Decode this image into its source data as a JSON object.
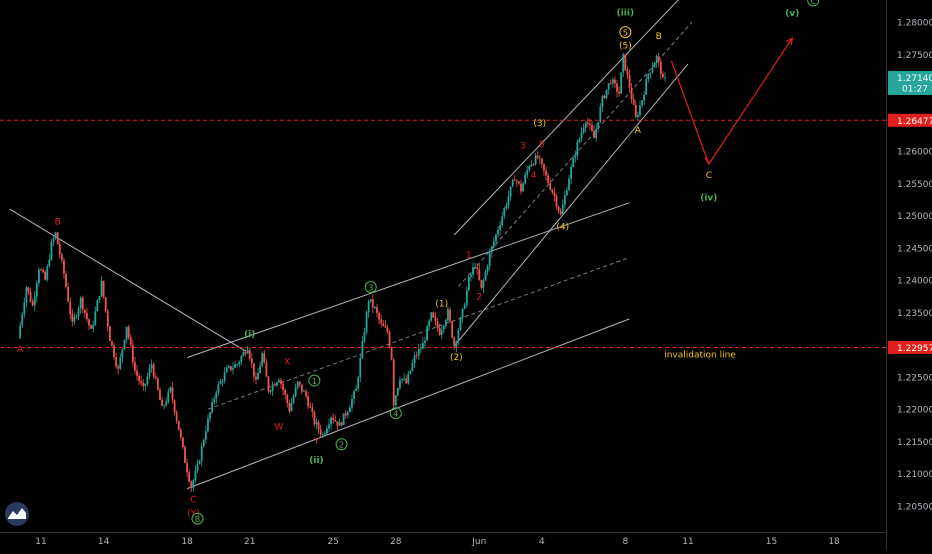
{
  "chart_data": {
    "type": "candlestick",
    "title": "",
    "xlabel": "",
    "ylabel": "",
    "ylim": [
      1.202,
      1.2845
    ],
    "grid": false,
    "x_ticks": [
      {
        "day": 0,
        "label": "11"
      },
      {
        "day": 3,
        "label": "14"
      },
      {
        "day": 7,
        "label": "18"
      },
      {
        "day": 10,
        "label": "21"
      },
      {
        "day": 14,
        "label": "25"
      },
      {
        "day": 17,
        "label": "28"
      },
      {
        "day": 21,
        "label": "Jun"
      },
      {
        "day": 24,
        "label": "4"
      },
      {
        "day": 28,
        "label": "8"
      },
      {
        "day": 31,
        "label": "11"
      },
      {
        "day": 35,
        "label": "15"
      },
      {
        "day": 38,
        "label": "18"
      }
    ],
    "y_ticks": [
      {
        "value": 1.28,
        "label": "1.28000"
      },
      {
        "value": 1.275,
        "label": "1.27500"
      },
      {
        "value": 1.27,
        "label": "1.27000"
      },
      {
        "value": 1.26,
        "label": "1.26000"
      },
      {
        "value": 1.255,
        "label": "1.25500"
      },
      {
        "value": 1.25,
        "label": "1.25000"
      },
      {
        "value": 1.245,
        "label": "1.24500"
      },
      {
        "value": 1.24,
        "label": "1.24000"
      },
      {
        "value": 1.235,
        "label": "1.23500"
      },
      {
        "value": 1.225,
        "label": "1.22500"
      },
      {
        "value": 1.22,
        "label": "1.22000"
      },
      {
        "value": 1.215,
        "label": "1.21500"
      },
      {
        "value": 1.21,
        "label": "1.21000"
      },
      {
        "value": 1.205,
        "label": "1.20500"
      }
    ],
    "price_badges": [
      {
        "value": 1.2714,
        "label": "1.27140",
        "sub": "01:27",
        "color": "#26a69a"
      },
      {
        "value": 1.26477,
        "label": "1.26477",
        "sub": "",
        "color": "#e1201e"
      },
      {
        "value": 1.22957,
        "label": "1.22957",
        "sub": "",
        "color": "#e1201e"
      }
    ],
    "horizontal_lines": [
      {
        "value": 1.26477,
        "color": "#e1201e",
        "style": "dashed"
      },
      {
        "value": 1.22957,
        "color": "#e1201e",
        "style": "dashed",
        "annotation": "invalidation line"
      }
    ],
    "price_path": [
      {
        "day": -1.0,
        "price": 1.231
      },
      {
        "day": -0.6,
        "price": 1.239
      },
      {
        "day": -0.3,
        "price": 1.236
      },
      {
        "day": 0.0,
        "price": 1.242
      },
      {
        "day": 0.3,
        "price": 1.24
      },
      {
        "day": 0.6,
        "price": 1.2455
      },
      {
        "day": 0.8,
        "price": 1.2472
      },
      {
        "day": 1.2,
        "price": 1.241
      },
      {
        "day": 1.6,
        "price": 1.233
      },
      {
        "day": 2.0,
        "price": 1.237
      },
      {
        "day": 2.5,
        "price": 1.232
      },
      {
        "day": 3.0,
        "price": 1.2395
      },
      {
        "day": 3.4,
        "price": 1.231
      },
      {
        "day": 3.8,
        "price": 1.226
      },
      {
        "day": 4.2,
        "price": 1.233
      },
      {
        "day": 4.6,
        "price": 1.226
      },
      {
        "day": 5.0,
        "price": 1.223
      },
      {
        "day": 5.4,
        "price": 1.227
      },
      {
        "day": 5.9,
        "price": 1.22
      },
      {
        "day": 6.3,
        "price": 1.223
      },
      {
        "day": 6.7,
        "price": 1.217
      },
      {
        "day": 7.0,
        "price": 1.212
      },
      {
        "day": 7.3,
        "price": 1.208
      },
      {
        "day": 7.6,
        "price": 1.211
      },
      {
        "day": 8.0,
        "price": 1.217
      },
      {
        "day": 8.5,
        "price": 1.223
      },
      {
        "day": 9.0,
        "price": 1.226
      },
      {
        "day": 9.5,
        "price": 1.227
      },
      {
        "day": 10.0,
        "price": 1.2298
      },
      {
        "day": 10.4,
        "price": 1.224
      },
      {
        "day": 10.7,
        "price": 1.2285
      },
      {
        "day": 11.0,
        "price": 1.223
      },
      {
        "day": 11.5,
        "price": 1.225
      },
      {
        "day": 12.0,
        "price": 1.22
      },
      {
        "day": 12.4,
        "price": 1.224
      },
      {
        "day": 12.8,
        "price": 1.222
      },
      {
        "day": 13.2,
        "price": 1.218
      },
      {
        "day": 13.6,
        "price": 1.216
      },
      {
        "day": 14.0,
        "price": 1.219
      },
      {
        "day": 14.4,
        "price": 1.2175
      },
      {
        "day": 14.8,
        "price": 1.22
      },
      {
        "day": 15.2,
        "price": 1.223
      },
      {
        "day": 15.5,
        "price": 1.23
      },
      {
        "day": 15.8,
        "price": 1.237
      },
      {
        "day": 16.1,
        "price": 1.2355
      },
      {
        "day": 16.4,
        "price": 1.233
      },
      {
        "day": 16.7,
        "price": 1.232
      },
      {
        "day": 16.9,
        "price": 1.228
      },
      {
        "day": 17.0,
        "price": 1.221
      },
      {
        "day": 17.3,
        "price": 1.225
      },
      {
        "day": 17.6,
        "price": 1.224
      },
      {
        "day": 18.0,
        "price": 1.228
      },
      {
        "day": 18.4,
        "price": 1.23
      },
      {
        "day": 18.8,
        "price": 1.2345
      },
      {
        "day": 19.2,
        "price": 1.232
      },
      {
        "day": 19.6,
        "price": 1.235
      },
      {
        "day": 19.9,
        "price": 1.2298
      },
      {
        "day": 20.3,
        "price": 1.235
      },
      {
        "day": 20.6,
        "price": 1.24
      },
      {
        "day": 20.9,
        "price": 1.2425
      },
      {
        "day": 21.2,
        "price": 1.2385
      },
      {
        "day": 21.6,
        "price": 1.244
      },
      {
        "day": 22.0,
        "price": 1.248
      },
      {
        "day": 22.4,
        "price": 1.252
      },
      {
        "day": 22.8,
        "price": 1.256
      },
      {
        "day": 23.1,
        "price": 1.254
      },
      {
        "day": 23.5,
        "price": 1.258
      },
      {
        "day": 23.9,
        "price": 1.259
      },
      {
        "day": 24.3,
        "price": 1.256
      },
      {
        "day": 24.7,
        "price": 1.253
      },
      {
        "day": 25.0,
        "price": 1.25
      },
      {
        "day": 25.4,
        "price": 1.256
      },
      {
        "day": 25.8,
        "price": 1.261
      },
      {
        "day": 26.2,
        "price": 1.265
      },
      {
        "day": 26.6,
        "price": 1.262
      },
      {
        "day": 27.0,
        "price": 1.268
      },
      {
        "day": 27.4,
        "price": 1.271
      },
      {
        "day": 27.8,
        "price": 1.269
      },
      {
        "day": 28.0,
        "price": 1.2745
      },
      {
        "day": 28.3,
        "price": 1.27
      },
      {
        "day": 28.6,
        "price": 1.265
      },
      {
        "day": 28.9,
        "price": 1.268
      },
      {
        "day": 29.2,
        "price": 1.272
      },
      {
        "day": 29.6,
        "price": 1.2745
      },
      {
        "day": 29.9,
        "price": 1.2714
      }
    ],
    "trend_lines": [
      {
        "color": "#b2b5be",
        "dash": false,
        "points": [
          [
            -1.5,
            1.251
          ],
          [
            9.8,
            1.229
          ]
        ]
      },
      {
        "color": "#b2b5be",
        "dash": false,
        "points": [
          [
            7.0,
            1.2077
          ],
          [
            28.2,
            1.234
          ]
        ]
      },
      {
        "color": "#b2b5be",
        "dash": false,
        "points": [
          [
            7.0,
            1.228
          ],
          [
            28.2,
            1.252
          ]
        ]
      },
      {
        "color": "#787b86",
        "dash": true,
        "points": [
          [
            8.0,
            1.22
          ],
          [
            28.2,
            1.2435
          ]
        ]
      },
      {
        "color": "#b2b5be",
        "dash": false,
        "points": [
          [
            19.8,
            1.2298
          ],
          [
            31.0,
            1.2735
          ]
        ]
      },
      {
        "color": "#b2b5be",
        "dash": false,
        "points": [
          [
            19.8,
            1.247
          ],
          [
            31.0,
            1.285
          ]
        ]
      },
      {
        "color": "#787b86",
        "dash": true,
        "points": [
          [
            20.0,
            1.239
          ],
          [
            31.2,
            1.28
          ]
        ]
      }
    ],
    "projection": {
      "color": "#e1201e",
      "points": [
        [
          30.2,
          1.274
        ],
        [
          32.0,
          1.258
        ],
        [
          36.0,
          1.2775
        ]
      ]
    },
    "wave_labels": [
      {
        "day": 0.8,
        "price": 1.2472,
        "text": "B",
        "color": "#e1201e",
        "pos": "above",
        "circle": false
      },
      {
        "day": -1.0,
        "price": 1.231,
        "text": "A",
        "color": "#e1201e",
        "pos": "below",
        "circle": false
      },
      {
        "day": 7.3,
        "price": 1.2077,
        "text": "C",
        "color": "#e1201e",
        "pos": "below",
        "circle": false
      },
      {
        "day": 7.3,
        "price": 1.2058,
        "text": "(Y)",
        "color": "#e1201e",
        "pos": "below2",
        "circle": false
      },
      {
        "day": 7.5,
        "price": 1.2025,
        "text": "B",
        "color": "#4caf50",
        "pos": "center",
        "circle": true
      },
      {
        "day": 10.0,
        "price": 1.2298,
        "text": "(i)",
        "color": "#4caf50",
        "pos": "above",
        "circle": false,
        "bold": true
      },
      {
        "day": 11.8,
        "price": 1.2255,
        "text": "X",
        "color": "#e1201e",
        "pos": "above",
        "circle": false
      },
      {
        "day": 11.4,
        "price": 1.219,
        "text": "W",
        "color": "#e1201e",
        "pos": "below",
        "circle": false
      },
      {
        "day": 13.2,
        "price": 1.2168,
        "text": "Y",
        "color": "#e1201e",
        "pos": "below",
        "circle": false
      },
      {
        "day": 13.2,
        "price": 1.214,
        "text": "(ii)",
        "color": "#4caf50",
        "pos": "below2",
        "circle": false,
        "bold": true
      },
      {
        "day": 14.4,
        "price": 1.2162,
        "text": "2",
        "color": "#4caf50",
        "pos": "below",
        "circle": true
      },
      {
        "day": 13.1,
        "price": 1.2225,
        "text": "1",
        "color": "#4caf50",
        "pos": "above",
        "circle": true
      },
      {
        "day": 15.8,
        "price": 1.237,
        "text": "3",
        "color": "#4caf50",
        "pos": "above",
        "circle": true
      },
      {
        "day": 17.0,
        "price": 1.221,
        "text": "4",
        "color": "#4caf50",
        "pos": "below",
        "circle": true
      },
      {
        "day": 19.2,
        "price": 1.2345,
        "text": "(1)",
        "color": "#f5c518",
        "pos": "above",
        "circle": false
      },
      {
        "day": 19.9,
        "price": 1.2298,
        "text": "(2)",
        "color": "#f5c518",
        "pos": "below",
        "circle": false
      },
      {
        "day": 20.5,
        "price": 1.242,
        "text": "1",
        "color": "#e1201e",
        "pos": "above",
        "circle": false
      },
      {
        "day": 21.0,
        "price": 1.2392,
        "text": "2",
        "color": "#e1201e",
        "pos": "below",
        "circle": false
      },
      {
        "day": 23.1,
        "price": 1.259,
        "text": "3",
        "color": "#e1201e",
        "pos": "above",
        "circle": false
      },
      {
        "day": 23.6,
        "price": 1.2558,
        "text": "4",
        "color": "#e1201e",
        "pos": "center",
        "circle": false
      },
      {
        "day": 24.0,
        "price": 1.2592,
        "text": "5",
        "color": "#e1201e",
        "pos": "above",
        "circle": false
      },
      {
        "day": 23.9,
        "price": 1.2625,
        "text": "(3)",
        "color": "#f5c518",
        "pos": "above",
        "circle": false
      },
      {
        "day": 25.0,
        "price": 1.25,
        "text": "(4)",
        "color": "#f5c518",
        "pos": "below",
        "circle": false
      },
      {
        "day": 28.0,
        "price": 1.2745,
        "text": "(5)",
        "color": "#f5c518",
        "pos": "above",
        "circle": false
      },
      {
        "day": 28.0,
        "price": 1.2765,
        "text": "5",
        "color": "#f5c518",
        "pos": "above",
        "circle": true
      },
      {
        "day": 28.0,
        "price": 1.2796,
        "text": "(iii)",
        "color": "#4caf50",
        "pos": "above",
        "circle": false,
        "bold": true
      },
      {
        "day": 29.6,
        "price": 1.276,
        "text": "B",
        "color": "#f5c518",
        "pos": "above",
        "circle": false
      },
      {
        "day": 28.6,
        "price": 1.265,
        "text": "A",
        "color": "#f5c518",
        "pos": "below",
        "circle": false
      },
      {
        "day": 32.0,
        "price": 1.258,
        "text": "C",
        "color": "#f5c518",
        "pos": "below",
        "circle": false
      },
      {
        "day": 32.0,
        "price": 1.2547,
        "text": "(iv)",
        "color": "#4caf50",
        "pos": "below2",
        "circle": false,
        "bold": true
      },
      {
        "day": 36.0,
        "price": 1.2795,
        "text": "(v)",
        "color": "#4caf50",
        "pos": "above",
        "circle": false,
        "bold": true
      },
      {
        "day": 37.0,
        "price": 1.2828,
        "text": "C",
        "color": "#4caf50",
        "pos": "center",
        "circle": true
      }
    ]
  }
}
